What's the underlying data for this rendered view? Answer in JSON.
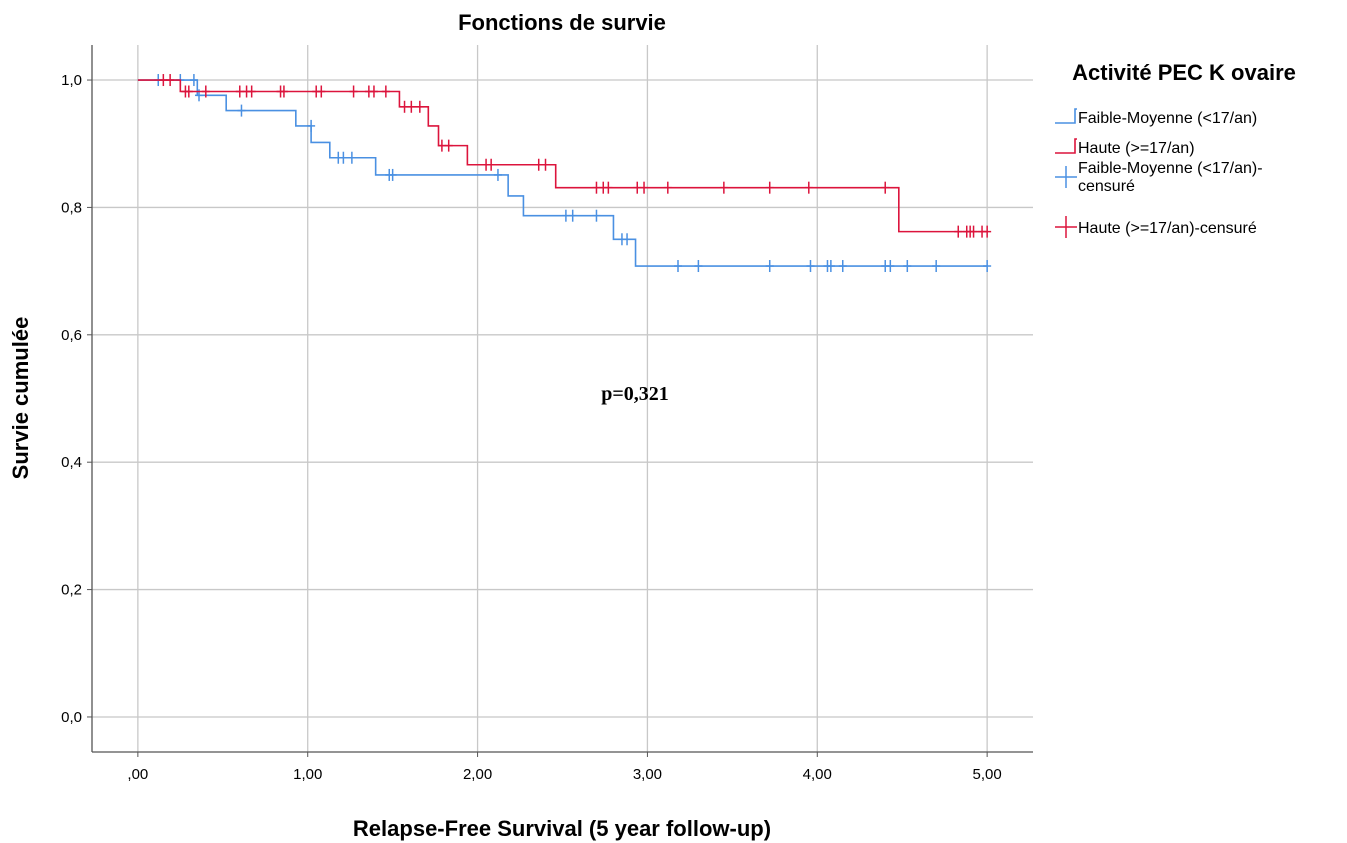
{
  "chart_data": {
    "type": "line",
    "title": "Fonctions de survie",
    "xlabel": "Relapse-Free Survival (5 year follow-up)",
    "ylabel": "Survie cumulée",
    "xlim": [
      -0.27,
      5.27
    ],
    "ylim": [
      -0.055,
      1.055
    ],
    "x_ticks": [
      0,
      1,
      2,
      3,
      4,
      5
    ],
    "x_tick_labels": [
      ",00",
      "1,00",
      "2,00",
      "3,00",
      "4,00",
      "5,00"
    ],
    "y_ticks": [
      0,
      0.2,
      0.4,
      0.6,
      0.8,
      1.0
    ],
    "y_tick_labels": [
      "0,0",
      "0,2",
      "0,4",
      "0,6",
      "0,8",
      "1,0"
    ],
    "grid": true,
    "legend_position": "right",
    "legend_title": "Activité PEC K ovaire",
    "annotation": "p=0,321",
    "series": [
      {
        "name": "Faible-Moyenne  (<17/an)",
        "censor_name": "Faible-Moyenne  (<17/an)-censuré",
        "color": "#4a90e2",
        "steps": [
          [
            0,
            1.0
          ],
          [
            0.35,
            0.976
          ],
          [
            0.52,
            0.952
          ],
          [
            0.93,
            0.928
          ],
          [
            1.02,
            0.902
          ],
          [
            1.13,
            0.878
          ],
          [
            1.4,
            0.851
          ],
          [
            2.18,
            0.818
          ],
          [
            2.27,
            0.787
          ],
          [
            2.8,
            0.75
          ],
          [
            2.93,
            0.708
          ],
          [
            5.0,
            0.708
          ]
        ],
        "censored": [
          [
            0.12,
            1.0
          ],
          [
            0.25,
            1.0
          ],
          [
            0.33,
            1.0
          ],
          [
            0.36,
            0.976
          ],
          [
            0.61,
            0.952
          ],
          [
            1.02,
            0.928
          ],
          [
            1.18,
            0.878
          ],
          [
            1.21,
            0.878
          ],
          [
            1.26,
            0.878
          ],
          [
            1.48,
            0.851
          ],
          [
            1.5,
            0.851
          ],
          [
            2.12,
            0.851
          ],
          [
            2.52,
            0.787
          ],
          [
            2.56,
            0.787
          ],
          [
            2.7,
            0.787
          ],
          [
            2.85,
            0.75
          ],
          [
            2.88,
            0.75
          ],
          [
            3.18,
            0.708
          ],
          [
            3.3,
            0.708
          ],
          [
            3.72,
            0.708
          ],
          [
            3.96,
            0.708
          ],
          [
            4.06,
            0.708
          ],
          [
            4.08,
            0.708
          ],
          [
            4.15,
            0.708
          ],
          [
            4.4,
            0.708
          ],
          [
            4.43,
            0.708
          ],
          [
            4.53,
            0.708
          ],
          [
            4.7,
            0.708
          ],
          [
            5.0,
            0.708
          ]
        ]
      },
      {
        "name": "Haute (>=17/an)",
        "censor_name": "Haute (>=17/an)-censuré",
        "color": "#dc143c",
        "steps": [
          [
            0,
            1.0
          ],
          [
            0.25,
            0.982
          ],
          [
            1.54,
            0.958
          ],
          [
            1.71,
            0.928
          ],
          [
            1.77,
            0.897
          ],
          [
            1.94,
            0.867
          ],
          [
            2.46,
            0.831
          ],
          [
            4.48,
            0.762
          ],
          [
            5.0,
            0.762
          ]
        ],
        "censored": [
          [
            0.15,
            1.0
          ],
          [
            0.19,
            1.0
          ],
          [
            0.28,
            0.982
          ],
          [
            0.3,
            0.982
          ],
          [
            0.4,
            0.982
          ],
          [
            0.6,
            0.982
          ],
          [
            0.64,
            0.982
          ],
          [
            0.67,
            0.982
          ],
          [
            0.84,
            0.982
          ],
          [
            0.86,
            0.982
          ],
          [
            1.05,
            0.982
          ],
          [
            1.08,
            0.982
          ],
          [
            1.27,
            0.982
          ],
          [
            1.36,
            0.982
          ],
          [
            1.39,
            0.982
          ],
          [
            1.46,
            0.982
          ],
          [
            1.57,
            0.958
          ],
          [
            1.61,
            0.958
          ],
          [
            1.66,
            0.958
          ],
          [
            1.79,
            0.897
          ],
          [
            1.83,
            0.897
          ],
          [
            2.05,
            0.867
          ],
          [
            2.08,
            0.867
          ],
          [
            2.36,
            0.867
          ],
          [
            2.4,
            0.867
          ],
          [
            2.7,
            0.831
          ],
          [
            2.74,
            0.831
          ],
          [
            2.77,
            0.831
          ],
          [
            2.94,
            0.831
          ],
          [
            2.98,
            0.831
          ],
          [
            3.12,
            0.831
          ],
          [
            3.45,
            0.831
          ],
          [
            3.72,
            0.831
          ],
          [
            3.95,
            0.831
          ],
          [
            4.4,
            0.831
          ],
          [
            4.83,
            0.762
          ],
          [
            4.88,
            0.762
          ],
          [
            4.9,
            0.762
          ],
          [
            4.92,
            0.762
          ],
          [
            4.97,
            0.762
          ],
          [
            5.0,
            0.762
          ]
        ]
      }
    ]
  }
}
